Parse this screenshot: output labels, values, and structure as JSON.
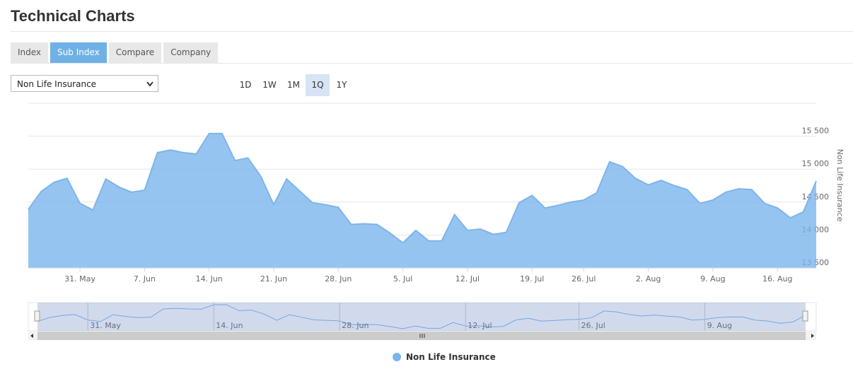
{
  "header": {
    "title": "Technical Charts"
  },
  "tabs": [
    "Index",
    "Sub Index",
    "Compare",
    "Company"
  ],
  "active_tab": 1,
  "selector": {
    "value": "Non Life Insurance"
  },
  "ranges": [
    "1D",
    "1W",
    "1M",
    "1Q",
    "1Y"
  ],
  "active_range": 3,
  "chart_data": {
    "type": "area",
    "categories": [
      null,
      null,
      null,
      null,
      "31. May",
      null,
      null,
      null,
      null,
      "7. Jun",
      null,
      null,
      null,
      null,
      "14. Jun",
      null,
      null,
      null,
      null,
      "21. Jun",
      null,
      null,
      null,
      null,
      "28. Jun",
      null,
      null,
      null,
      null,
      "5. Jul",
      null,
      null,
      null,
      null,
      "12. Jul",
      null,
      null,
      null,
      null,
      "19. Jul",
      null,
      null,
      null,
      "26. Jul",
      null,
      null,
      null,
      null,
      "2. Aug",
      null,
      null,
      null,
      null,
      "9. Aug",
      null,
      null,
      null,
      null,
      "16. Aug",
      null,
      null,
      null
    ],
    "series": [
      {
        "name": "Non Life Insurance",
        "color": "#7cb5ec",
        "values": [
          14390,
          14660,
          14800,
          14860,
          14480,
          14380,
          14850,
          14730,
          14650,
          14680,
          15250,
          15290,
          15250,
          15230,
          15540,
          15540,
          15130,
          15170,
          14890,
          14460,
          14850,
          14670,
          14490,
          14460,
          14420,
          14160,
          14170,
          14160,
          14030,
          13880,
          14070,
          13910,
          13910,
          14310,
          14070,
          14090,
          14010,
          14040,
          14490,
          14600,
          14410,
          14450,
          14500,
          14530,
          14640,
          15110,
          15040,
          14860,
          14760,
          14830,
          14750,
          14690,
          14480,
          14530,
          14650,
          14700,
          14690,
          14480,
          14410,
          14260,
          14350,
          14820
        ]
      }
    ],
    "ylim": [
      13500,
      16000
    ],
    "yticks": [
      {
        "value": 13500,
        "label": "13 500"
      },
      {
        "value": 14000,
        "label": "14 000"
      },
      {
        "value": 14500,
        "label": "14 500"
      },
      {
        "value": 15000,
        "label": "15 000"
      },
      {
        "value": 15500,
        "label": "15 500"
      }
    ],
    "y_title": "Non Life Insurance",
    "grid": true
  }
}
